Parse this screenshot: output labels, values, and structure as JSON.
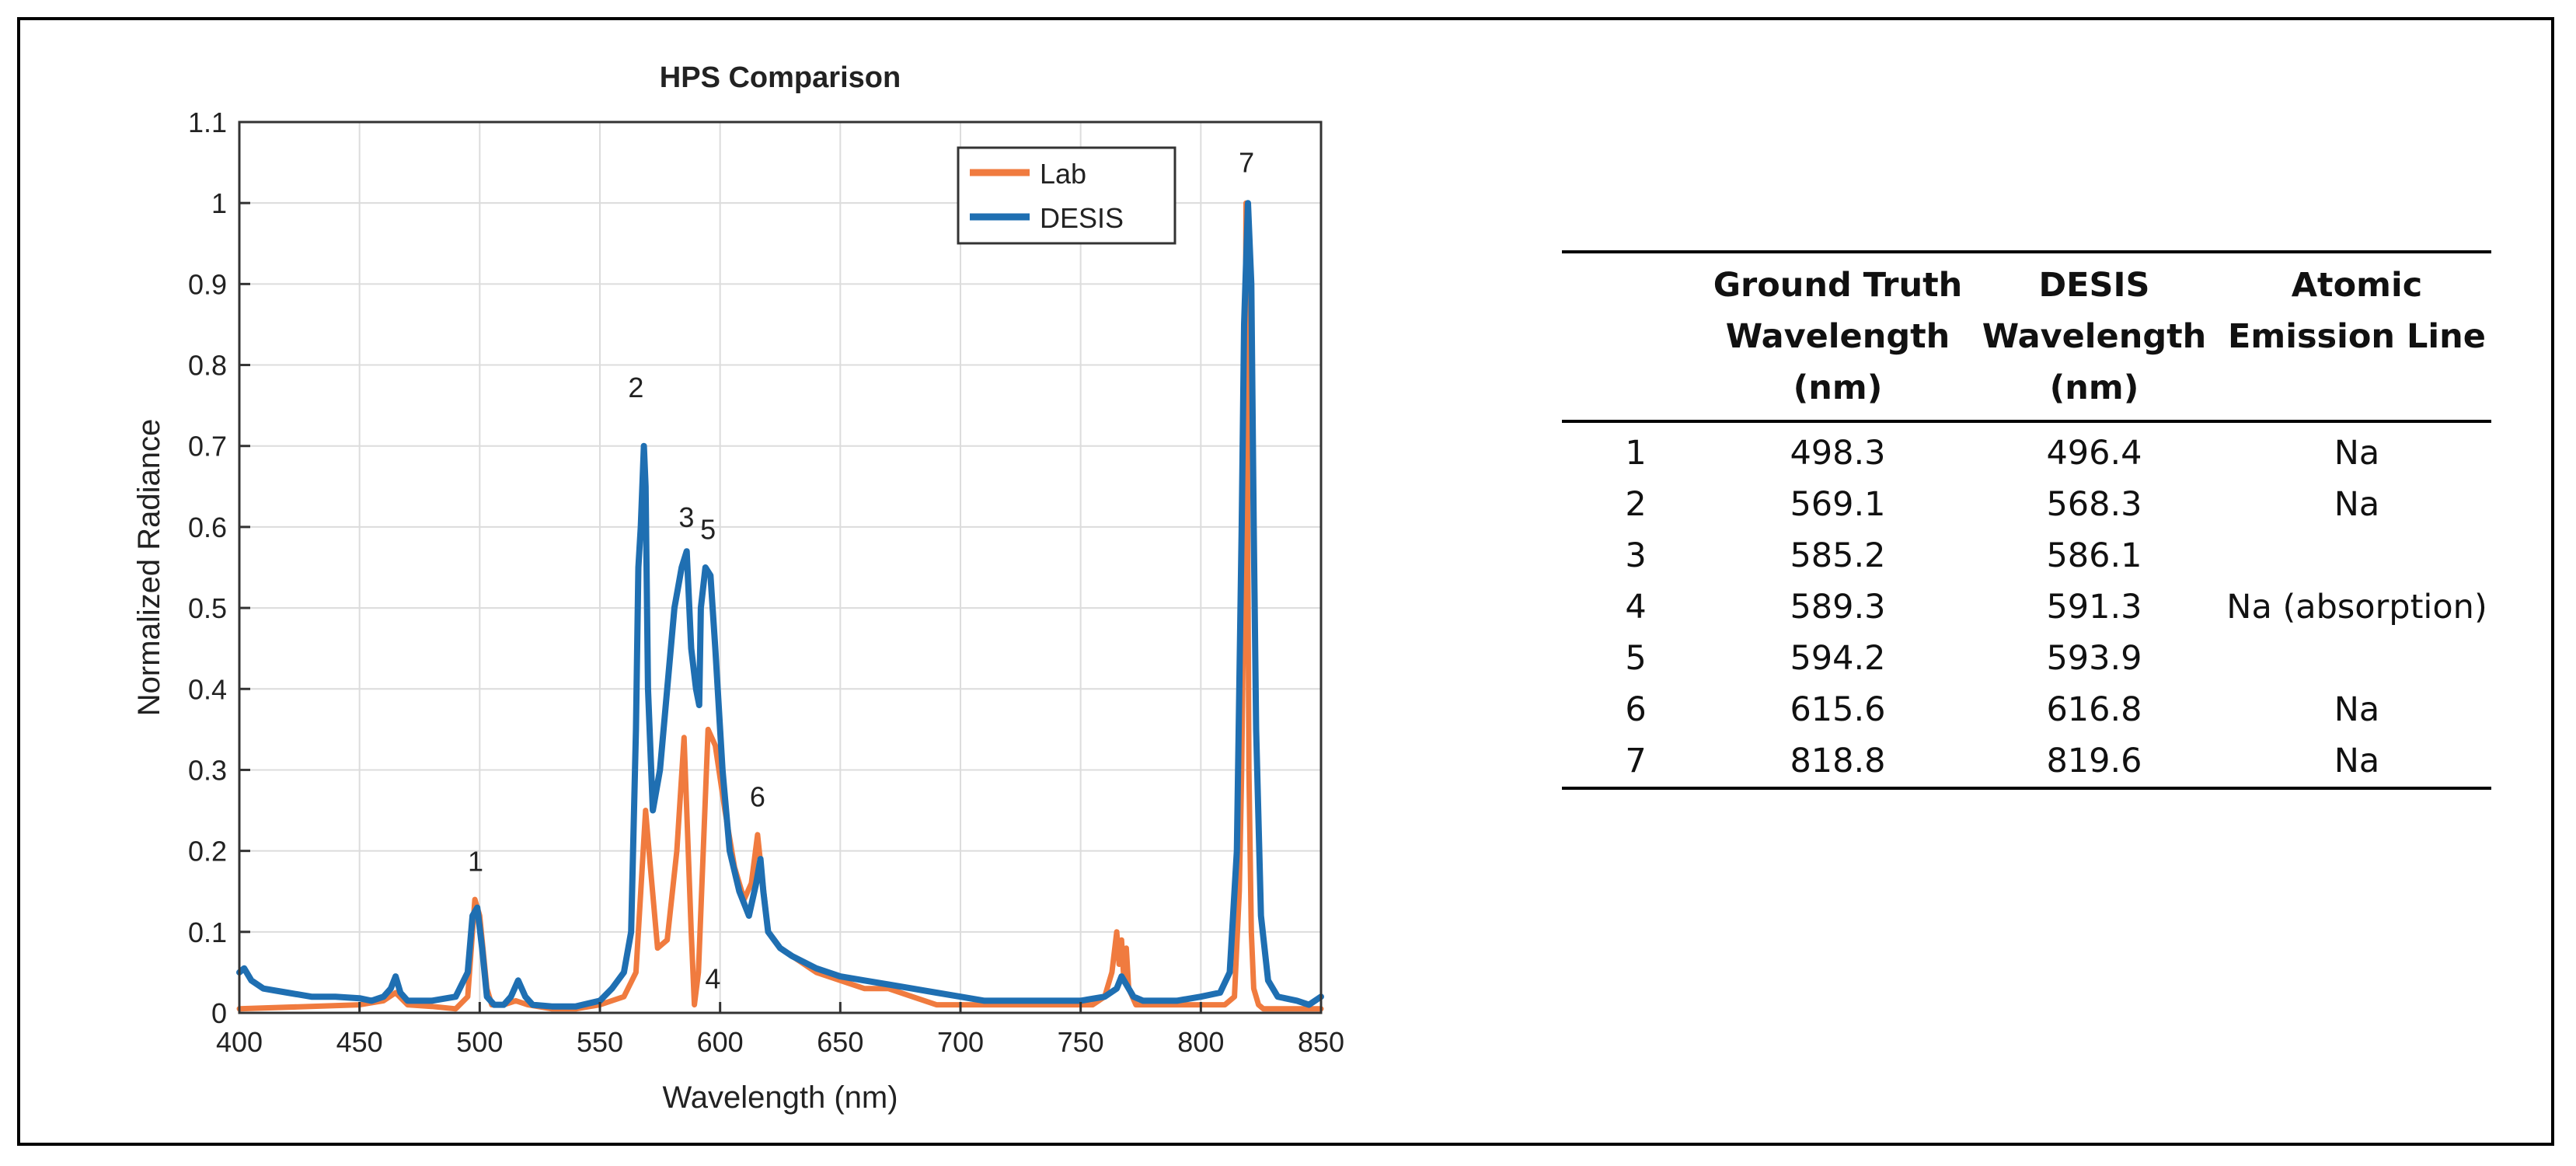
{
  "chart_data": {
    "type": "line",
    "title": "HPS Comparison",
    "xlabel": "Wavelength (nm)",
    "ylabel": "Normalized Radiance",
    "xlim": [
      400,
      850
    ],
    "ylim": [
      0,
      1.1
    ],
    "xticks": [
      "400",
      "450",
      "500",
      "550",
      "600",
      "650",
      "700",
      "750",
      "800",
      "850"
    ],
    "yticks": [
      "0",
      "0.1",
      "0.2",
      "0.3",
      "0.4",
      "0.5",
      "0.6",
      "0.7",
      "0.8",
      "0.9",
      "1",
      "1.1"
    ],
    "grid": true,
    "legend": {
      "placement": "top-right",
      "entries": [
        "Lab",
        "DESIS"
      ]
    },
    "series": [
      {
        "name": "Lab",
        "color": "#f07b3f",
        "x": [
          400,
          450,
          460,
          465,
          470,
          480,
          490,
          495,
          498,
          500,
          503,
          505,
          510,
          515,
          520,
          530,
          540,
          550,
          560,
          565,
          567,
          569,
          571,
          574,
          578,
          582,
          585,
          588,
          589.3,
          591,
          593,
          595,
          598,
          602,
          606,
          610,
          613,
          615.6,
          617,
          620,
          625,
          630,
          640,
          650,
          660,
          670,
          680,
          690,
          700,
          720,
          740,
          755,
          760,
          763,
          765,
          766,
          767,
          768,
          769,
          770,
          773,
          778,
          785,
          800,
          810,
          814,
          816,
          817,
          818,
          818.8,
          819.5,
          820,
          821,
          822,
          824,
          826,
          830,
          840,
          850
        ],
        "y": [
          0.005,
          0.01,
          0.015,
          0.025,
          0.01,
          0.008,
          0.005,
          0.02,
          0.14,
          0.12,
          0.03,
          0.01,
          0.01,
          0.015,
          0.01,
          0.005,
          0.005,
          0.01,
          0.02,
          0.05,
          0.15,
          0.25,
          0.18,
          0.08,
          0.09,
          0.2,
          0.34,
          0.1,
          0.01,
          0.05,
          0.2,
          0.35,
          0.33,
          0.25,
          0.18,
          0.14,
          0.16,
          0.22,
          0.18,
          0.1,
          0.08,
          0.07,
          0.05,
          0.04,
          0.03,
          0.03,
          0.02,
          0.01,
          0.01,
          0.01,
          0.01,
          0.01,
          0.02,
          0.05,
          0.1,
          0.06,
          0.09,
          0.04,
          0.08,
          0.03,
          0.01,
          0.01,
          0.01,
          0.01,
          0.01,
          0.02,
          0.15,
          0.3,
          0.55,
          1.0,
          0.6,
          0.3,
          0.1,
          0.03,
          0.01,
          0.005,
          0.005,
          0.005,
          0.005
        ]
      },
      {
        "name": "DESIS",
        "color": "#1f6fb2",
        "x": [
          400,
          402,
          405,
          410,
          420,
          430,
          440,
          450,
          455,
          460,
          463,
          465,
          467,
          470,
          480,
          490,
          495,
          497,
          499,
          501,
          503,
          506,
          510,
          513,
          516,
          519,
          522,
          530,
          540,
          550,
          555,
          560,
          563,
          565,
          566,
          567,
          568.3,
          569,
          570,
          572,
          575,
          578,
          581,
          584,
          586.1,
          588,
          590,
          591.3,
          592,
          593.9,
          596,
          598,
          601,
          604,
          608,
          612,
          615,
          616.8,
          618,
          620,
          625,
          630,
          640,
          650,
          660,
          670,
          680,
          690,
          700,
          710,
          720,
          730,
          740,
          750,
          760,
          765,
          767,
          769,
          772,
          776,
          780,
          790,
          800,
          808,
          812,
          815,
          817,
          818,
          819.6,
          821,
          822,
          823,
          825,
          828,
          832,
          840,
          845,
          850
        ],
        "y": [
          0.05,
          0.055,
          0.04,
          0.03,
          0.025,
          0.02,
          0.02,
          0.018,
          0.015,
          0.02,
          0.03,
          0.045,
          0.025,
          0.015,
          0.015,
          0.02,
          0.05,
          0.12,
          0.13,
          0.08,
          0.02,
          0.01,
          0.01,
          0.02,
          0.04,
          0.02,
          0.01,
          0.008,
          0.008,
          0.015,
          0.03,
          0.05,
          0.1,
          0.35,
          0.55,
          0.6,
          0.7,
          0.65,
          0.4,
          0.25,
          0.3,
          0.4,
          0.5,
          0.55,
          0.57,
          0.45,
          0.4,
          0.38,
          0.5,
          0.55,
          0.54,
          0.45,
          0.3,
          0.2,
          0.15,
          0.12,
          0.16,
          0.19,
          0.15,
          0.1,
          0.08,
          0.07,
          0.055,
          0.045,
          0.04,
          0.035,
          0.03,
          0.025,
          0.02,
          0.015,
          0.015,
          0.015,
          0.015,
          0.015,
          0.02,
          0.03,
          0.045,
          0.035,
          0.02,
          0.015,
          0.015,
          0.015,
          0.02,
          0.025,
          0.05,
          0.2,
          0.6,
          0.85,
          1.0,
          0.9,
          0.6,
          0.35,
          0.12,
          0.04,
          0.02,
          0.015,
          0.01,
          0.02
        ]
      }
    ],
    "annotations": [
      {
        "label": "1",
        "x": 498.3,
        "y": 0.175
      },
      {
        "label": "2",
        "x": 565,
        "y": 0.76
      },
      {
        "label": "3",
        "x": 586,
        "y": 0.6
      },
      {
        "label": "4",
        "x": 597,
        "y": 0.03
      },
      {
        "label": "5",
        "x": 595,
        "y": 0.585
      },
      {
        "label": "6",
        "x": 615.6,
        "y": 0.255
      },
      {
        "label": "7",
        "x": 819,
        "y": 1.038
      }
    ]
  },
  "table": {
    "headers": [
      "",
      "Ground Truth Wavelength (nm)",
      "DESIS Wavelength (nm)",
      "Atomic Emission Line"
    ],
    "rows": [
      [
        "1",
        "498.3",
        "496.4",
        "Na"
      ],
      [
        "2",
        "569.1",
        "568.3",
        "Na"
      ],
      [
        "3",
        "585.2",
        "586.1",
        ""
      ],
      [
        "4",
        "589.3",
        "591.3",
        "Na (absorption)"
      ],
      [
        "5",
        "594.2",
        "593.9",
        ""
      ],
      [
        "6",
        "615.6",
        "616.8",
        "Na"
      ],
      [
        "7",
        "818.8",
        "819.6",
        "Na"
      ]
    ]
  }
}
